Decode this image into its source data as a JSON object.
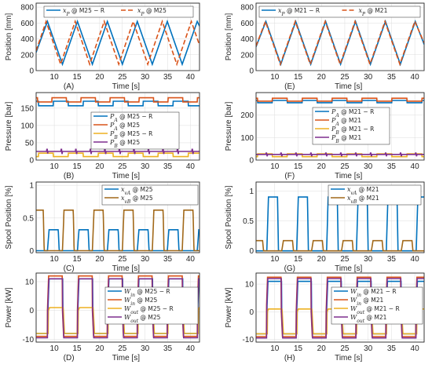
{
  "colors": {
    "blue": "#0072BD",
    "red": "#D95319",
    "yellow": "#EDB120",
    "purple": "#7E2F8E",
    "brown": "#A2691A"
  },
  "chart_data": [
    {
      "id": "A",
      "type": "line",
      "panel_label": "(A)",
      "xlabel": "Time [s]",
      "ylabel": "Position [mm]",
      "xlim": [
        6,
        42
      ],
      "ylim": [
        0,
        850
      ],
      "xticks": [
        10,
        15,
        20,
        25,
        30,
        35,
        40
      ],
      "yticks": [
        0,
        200,
        400,
        600,
        800
      ],
      "grid": true,
      "legend": "top-center",
      "series": [
        {
          "name": "x_P @ M25 − R",
          "legend_main": "x",
          "legend_sub": "P",
          "legend_rest": " @ M25 − R",
          "color": "#0072BD",
          "dash": "none",
          "x": [
            6,
            8.5,
            11.8,
            15.1,
            18.4,
            21.7,
            25.0,
            28.3,
            31.6,
            34.9,
            38.2,
            41.5,
            42
          ],
          "y": [
            230,
            620,
            80,
            620,
            80,
            620,
            80,
            620,
            80,
            620,
            80,
            620,
            560
          ]
        },
        {
          "name": "x_P @ M25",
          "legend_main": "x",
          "legend_sub": "P",
          "legend_rest": " @ M25",
          "color": "#D95319",
          "dash": "6,3",
          "x": [
            6,
            8.2,
            11.4,
            14.6,
            17.8,
            21.0,
            24.2,
            27.4,
            30.6,
            33.8,
            37.0,
            40.2,
            42
          ],
          "y": [
            250,
            620,
            80,
            620,
            80,
            620,
            80,
            620,
            80,
            620,
            80,
            620,
            320
          ]
        }
      ]
    },
    {
      "id": "E",
      "type": "line",
      "panel_label": "(E)",
      "xlabel": "Time [s]",
      "ylabel": "Position [mm]",
      "xlim": [
        6,
        42
      ],
      "ylim": [
        0,
        850
      ],
      "xticks": [
        10,
        15,
        20,
        25,
        30,
        35,
        40
      ],
      "yticks": [
        0,
        200,
        400,
        600,
        800
      ],
      "grid": true,
      "legend": "top-center",
      "series": [
        {
          "name": "x_P @ M21 − R",
          "legend_main": "x",
          "legend_sub": "P",
          "legend_rest": " @ M21 − R",
          "color": "#0072BD",
          "dash": "none",
          "x": [
            6,
            8.1,
            11.3,
            14.5,
            17.7,
            20.9,
            24.1,
            27.3,
            30.5,
            33.7,
            36.9,
            40.1,
            42
          ],
          "y": [
            300,
            620,
            80,
            620,
            80,
            620,
            80,
            620,
            80,
            620,
            80,
            620,
            330
          ]
        },
        {
          "name": "x_P @ M21",
          "legend_main": "x",
          "legend_sub": "P",
          "legend_rest": " @ M21",
          "color": "#D95319",
          "dash": "6,3",
          "x": [
            6,
            8.0,
            11.2,
            14.4,
            17.6,
            20.8,
            24.0,
            27.2,
            30.4,
            33.6,
            36.8,
            40.0,
            42
          ],
          "y": [
            310,
            620,
            80,
            620,
            80,
            620,
            80,
            620,
            80,
            620,
            80,
            620,
            350
          ]
        }
      ]
    },
    {
      "id": "B",
      "type": "line",
      "panel_label": "(B)",
      "xlabel": "Time [s]",
      "ylabel": "Pressure [bar]",
      "xlim": [
        6,
        42
      ],
      "ylim": [
        0,
        195
      ],
      "xticks": [
        10,
        15,
        20,
        25,
        30,
        35,
        40
      ],
      "yticks": [
        0,
        50,
        100,
        150
      ],
      "grid": true,
      "legend": "center",
      "series": [
        {
          "name": "P_A @ M25 − R",
          "legend_main": "P",
          "legend_sub": "A",
          "legend_rest": " @ M25 − R",
          "color": "#0072BD",
          "dash": "none",
          "pattern": "square",
          "base": 170,
          "alt": 157,
          "period": 6.6,
          "phase": 9.8
        },
        {
          "name": "P_A @ M25",
          "legend_main": "P",
          "legend_sub": "A",
          "legend_rest": " @ M25",
          "color": "#D95319",
          "dash": "none",
          "pattern": "square",
          "base": 180,
          "alt": 168,
          "period": 6.4,
          "phase": 9.5
        },
        {
          "name": "P_B @ M25 − R",
          "legend_main": "P",
          "legend_sub": "B",
          "legend_rest": " @ M25 − R",
          "color": "#EDB120",
          "dash": "none",
          "pattern": "square",
          "base": 10,
          "alt": 20,
          "period": 6.6,
          "phase": 9.8
        },
        {
          "name": "P_B @ M25",
          "legend_main": "P",
          "legend_sub": "B",
          "legend_rest": " @ M25",
          "color": "#7E2F8E",
          "dash": "none",
          "pattern": "spiky",
          "base": 25,
          "alt": 25,
          "period": 3.2,
          "phase": 8.3
        }
      ]
    },
    {
      "id": "F",
      "type": "line",
      "panel_label": "(F)",
      "xlabel": "Time [s]",
      "ylabel": "Pressure [bar]",
      "xlim": [
        6,
        42
      ],
      "ylim": [
        0,
        300
      ],
      "xticks": [
        10,
        15,
        20,
        25,
        30,
        35,
        40
      ],
      "yticks": [
        0,
        100,
        200
      ],
      "grid": true,
      "legend": "center",
      "series": [
        {
          "name": "P_A @ M21 − R",
          "legend_main": "P",
          "legend_sub": "A",
          "legend_rest": " @ M21 − R",
          "color": "#0072BD",
          "dash": "none",
          "pattern": "square",
          "base": 265,
          "alt": 255,
          "period": 6.4,
          "phase": 9.5
        },
        {
          "name": "P_A @ M21",
          "legend_main": "P",
          "legend_sub": "A",
          "legend_rest": " @ M21",
          "color": "#D95319",
          "dash": "none",
          "pattern": "square",
          "base": 275,
          "alt": 262,
          "period": 6.4,
          "phase": 9.5
        },
        {
          "name": "P_B @ M21 − R",
          "legend_main": "P",
          "legend_sub": "B",
          "legend_rest": " @ M21 − R",
          "color": "#EDB120",
          "dash": "none",
          "pattern": "square",
          "base": 15,
          "alt": 28,
          "period": 6.4,
          "phase": 9.5
        },
        {
          "name": "P_B @ M21",
          "legend_main": "P",
          "legend_sub": "B",
          "legend_rest": " @ M21",
          "color": "#7E2F8E",
          "dash": "none",
          "pattern": "spiky",
          "base": 25,
          "alt": 25,
          "period": 3.2,
          "phase": 8.1
        }
      ]
    },
    {
      "id": "C",
      "type": "line",
      "panel_label": "(C)",
      "xlabel": "Time [s]",
      "ylabel": "Spool Position [%]",
      "xlim": [
        6,
        42
      ],
      "ylim": [
        -0.03,
        1.05
      ],
      "xticks": [
        10,
        15,
        20,
        25,
        30,
        35,
        40
      ],
      "yticks": [
        0,
        0.5,
        1
      ],
      "grid": true,
      "legend": "top-right",
      "series": [
        {
          "name": "x_vA @ M25",
          "legend_main": "x",
          "legend_sub": "vA",
          "legend_rest": " @ M25",
          "color": "#0072BD",
          "dash": "none",
          "pattern": "pulse",
          "base": 0,
          "alt": 0.32,
          "period": 6.6,
          "phase": 8.5
        },
        {
          "name": "x_vB @ M25",
          "legend_main": "x",
          "legend_sub": "vB",
          "legend_rest": " @ M25",
          "color": "#A2691A",
          "dash": "none",
          "pattern": "pulse",
          "base": 0,
          "alt": 0.62,
          "period": 6.6,
          "phase": 11.8
        }
      ]
    },
    {
      "id": "G",
      "type": "line",
      "panel_label": "(G)",
      "xlabel": "Time [s]",
      "ylabel": "Spool Position [%]",
      "xlim": [
        6,
        42
      ],
      "ylim": [
        -0.03,
        1.15
      ],
      "xticks": [
        10,
        15,
        20,
        25,
        30,
        35,
        40
      ],
      "yticks": [
        0,
        0.5,
        1
      ],
      "grid": true,
      "legend": "top-right",
      "series": [
        {
          "name": "x_vA @ M21",
          "legend_main": "x",
          "legend_sub": "vA",
          "legend_rest": " @ M21",
          "color": "#0072BD",
          "dash": "none",
          "pattern": "pulse",
          "base": 0,
          "alt": 0.9,
          "period": 6.4,
          "phase": 8.3
        },
        {
          "name": "x_vB @ M21",
          "legend_main": "x",
          "legend_sub": "vB",
          "legend_rest": " @ M21",
          "color": "#A2691A",
          "dash": "none",
          "pattern": "pulse",
          "base": 0,
          "alt": 0.17,
          "period": 6.4,
          "phase": 11.5
        }
      ]
    },
    {
      "id": "D",
      "type": "line",
      "panel_label": "(D)",
      "xlabel": "Time [s]",
      "ylabel": "Power [kW]",
      "xlim": [
        6,
        42
      ],
      "ylim": [
        -11,
        13
      ],
      "xticks": [
        10,
        15,
        20,
        25,
        30,
        35,
        40
      ],
      "yticks": [
        -10,
        0,
        10
      ],
      "grid": true,
      "legend": "bottom-right",
      "series": [
        {
          "name": "W_in @ M25 − R",
          "legend_main": "W",
          "legend_sub": "in",
          "legend_rest": " @ M25 − R",
          "color": "#0072BD",
          "dash": "none",
          "pattern": "power",
          "base": 11,
          "alt": -8,
          "period": 6.6,
          "phase": 8.6
        },
        {
          "name": "W_in @ M25",
          "legend_main": "W",
          "legend_sub": "in",
          "legend_rest": " @ M25",
          "color": "#D95319",
          "dash": "none",
          "pattern": "power",
          "base": 12,
          "alt": -9,
          "period": 6.6,
          "phase": 8.5
        },
        {
          "name": "W_out @ M25 − R",
          "legend_main": "W",
          "legend_sub": "out",
          "legend_rest": " @ M25 − R",
          "color": "#EDB120",
          "dash": "none",
          "pattern": "power",
          "base": 1,
          "alt": -8,
          "period": 6.6,
          "phase": 8.7
        },
        {
          "name": "W_out @ M25",
          "legend_main": "W",
          "legend_sub": "out",
          "legend_rest": " @ M25",
          "color": "#7E2F8E",
          "dash": "none",
          "pattern": "power",
          "base": 11,
          "alt": -9.5,
          "period": 6.6,
          "phase": 8.55
        }
      ]
    },
    {
      "id": "H",
      "type": "line",
      "panel_label": "(H)",
      "xlabel": "Time [s]",
      "ylabel": "Power [kW]",
      "xlim": [
        6,
        42
      ],
      "ylim": [
        -11,
        14
      ],
      "xticks": [
        10,
        15,
        20,
        25,
        30,
        35,
        40
      ],
      "yticks": [
        -10,
        0,
        10
      ],
      "grid": true,
      "legend": "bottom-right",
      "series": [
        {
          "name": "W_in @ M21 − R",
          "legend_main": "W",
          "legend_sub": "in",
          "legend_rest": " @ M21 − R",
          "color": "#0072BD",
          "dash": "none",
          "pattern": "power",
          "base": 11,
          "alt": -8,
          "period": 6.4,
          "phase": 8.3
        },
        {
          "name": "W_in @ M21",
          "legend_main": "W",
          "legend_sub": "in",
          "legend_rest": " @ M21",
          "color": "#D95319",
          "dash": "none",
          "pattern": "power",
          "base": 12.5,
          "alt": -9,
          "period": 6.4,
          "phase": 8.2
        },
        {
          "name": "W_out @ M21 − R",
          "legend_main": "W",
          "legend_sub": "out",
          "legend_rest": " @ M21 − R",
          "color": "#EDB120",
          "dash": "none",
          "pattern": "power",
          "base": 1,
          "alt": -8,
          "period": 6.4,
          "phase": 8.4
        },
        {
          "name": "W_out @ M21",
          "legend_main": "W",
          "legend_sub": "out",
          "legend_rest": " @ M21",
          "color": "#7E2F8E",
          "dash": "none",
          "pattern": "power",
          "base": 12,
          "alt": -9.5,
          "period": 6.4,
          "phase": 8.25
        }
      ]
    }
  ]
}
